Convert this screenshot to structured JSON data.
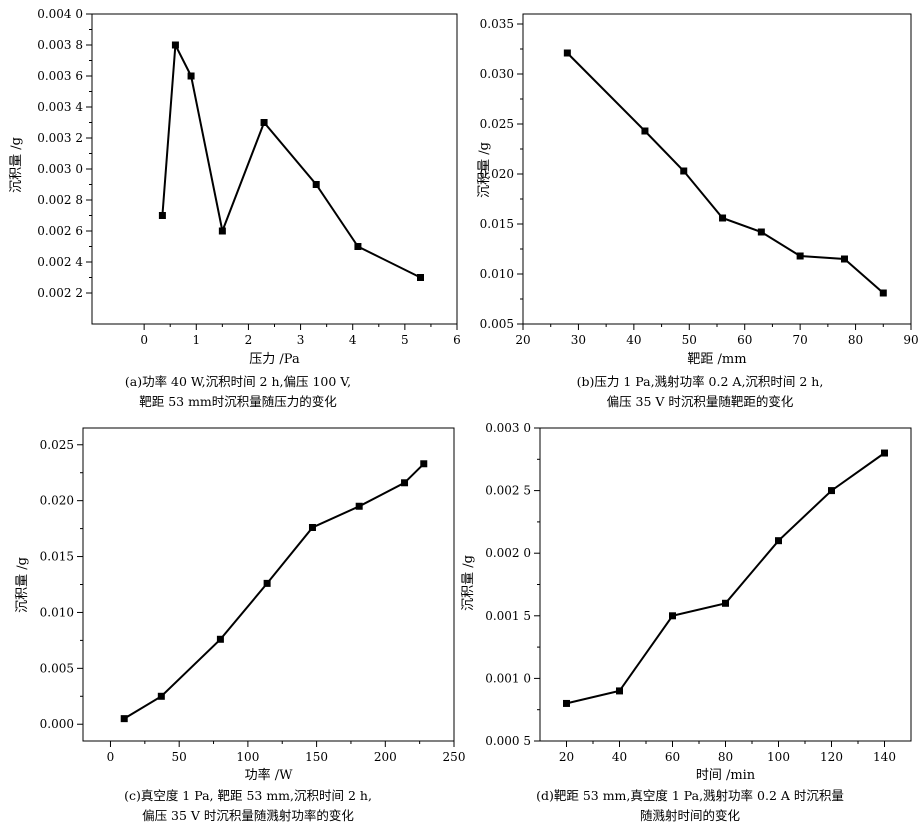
{
  "chart_data": [
    {
      "type": "line",
      "xlabel": "压力 /Pa",
      "ylabel": "沉积量 /g",
      "xlim": [
        -1,
        6
      ],
      "ylim": [
        0.002,
        0.004
      ],
      "xticks": [
        "0",
        "1",
        "2",
        "3",
        "4",
        "5",
        "6"
      ],
      "yticks": [
        "0.002 2",
        "0.002 4",
        "0.002 6",
        "0.002 8",
        "0.003 0",
        "0.003 2",
        "0.003 4",
        "0.003 6",
        "0.003 8",
        "0.004 0"
      ],
      "x": [
        0.35,
        0.6,
        0.9,
        1.5,
        2.3,
        3.3,
        4.1,
        5.3
      ],
      "y": [
        0.0027,
        0.0038,
        0.0036,
        0.0026,
        0.0033,
        0.0029,
        0.0025,
        0.0023
      ],
      "caption": [
        "(a)功率 40 W,沉积时间 2 h,偏压 100 V,",
        "靶距 53 mm时沉积量随压力的变化"
      ]
    },
    {
      "type": "line",
      "xlabel": "靶距 /mm",
      "ylabel": "沉积量 /g",
      "xlim": [
        20,
        90
      ],
      "ylim": [
        0.005,
        0.036
      ],
      "xticks": [
        "20",
        "30",
        "40",
        "50",
        "60",
        "70",
        "80",
        "90"
      ],
      "yticks": [
        "0.005",
        "0.010",
        "0.015",
        "0.020",
        "0.025",
        "0.030",
        "0.035"
      ],
      "x": [
        28,
        42,
        49,
        56,
        63,
        70,
        78,
        85
      ],
      "y": [
        0.0321,
        0.0243,
        0.0203,
        0.0156,
        0.0142,
        0.0118,
        0.0115,
        0.0081
      ],
      "caption": [
        "(b)压力 1 Pa,溅射功率 0.2 A,沉积时间 2 h,",
        "偏压 35 V 时沉积量随靶距的变化"
      ]
    },
    {
      "type": "line",
      "xlabel": "功率 /W",
      "ylabel": "沉积量 /g",
      "xlim": [
        -20,
        250
      ],
      "ylim": [
        -0.0015,
        0.0265
      ],
      "xticks": [
        "0",
        "50",
        "100",
        "150",
        "200",
        "250"
      ],
      "yticks": [
        "0.000",
        "0.005",
        "0.010",
        "0.015",
        "0.020",
        "0.025"
      ],
      "x": [
        10,
        37,
        80,
        114,
        147,
        181,
        214,
        228
      ],
      "y": [
        0.0005,
        0.0025,
        0.0076,
        0.0126,
        0.0176,
        0.0195,
        0.0216,
        0.0233
      ],
      "caption": [
        "(c)真空度 1 Pa, 靶距 53 mm,沉积时间 2 h,",
        "偏压 35 V 时沉积量随溅射功率的变化"
      ]
    },
    {
      "type": "line",
      "xlabel": "时间 /min",
      "ylabel": "沉积量 /g",
      "xlim": [
        10,
        150
      ],
      "ylim": [
        0.0005,
        0.003
      ],
      "xticks": [
        "20",
        "40",
        "60",
        "80",
        "100",
        "120",
        "140"
      ],
      "yticks": [
        "0.000 5",
        "0.001 0",
        "0.001 5",
        "0.002 0",
        "0.002 5",
        "0.003 0"
      ],
      "x": [
        20,
        40,
        60,
        80,
        100,
        120,
        140
      ],
      "y": [
        0.0008,
        0.0009,
        0.0015,
        0.0016,
        0.0021,
        0.0025,
        0.0028
      ],
      "caption": [
        "(d)靶距 53 mm,真空度 1 Pa,溅射功率 0.2 A 时沉积量",
        "随溅射时间的变化"
      ]
    }
  ]
}
